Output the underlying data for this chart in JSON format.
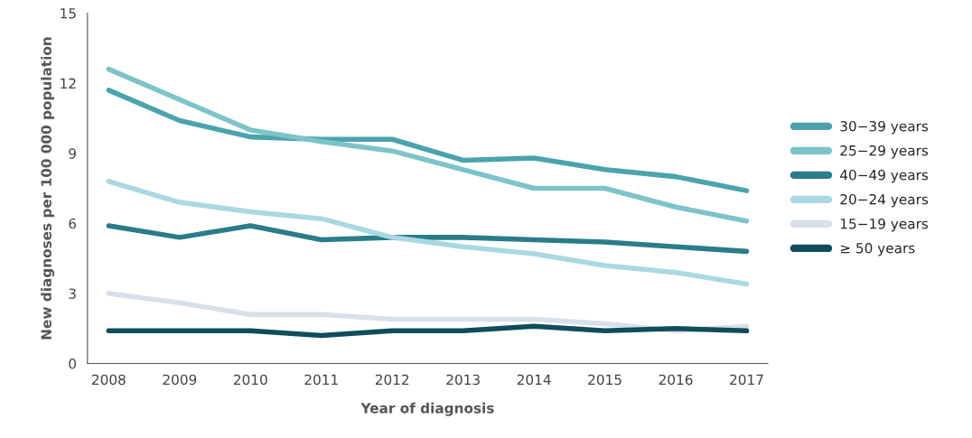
{
  "chart_data": {
    "type": "line",
    "xlabel": "Year of diagnosis",
    "ylabel": "New diagnoses per 100 000 population",
    "categories": [
      "2008",
      "2009",
      "2010",
      "2011",
      "2012",
      "2013",
      "2014",
      "2015",
      "2016",
      "2017"
    ],
    "ylim": [
      0,
      15
    ],
    "yticks": [
      0,
      3,
      6,
      9,
      12,
      15
    ],
    "grid": false,
    "legend": "right",
    "marker": "none",
    "line_style": "solid",
    "series": [
      {
        "name": "30−39 years",
        "color": "#4aa3ad",
        "values": [
          11.7,
          10.4,
          9.7,
          9.6,
          9.6,
          8.7,
          8.8,
          8.3,
          8.0,
          7.4
        ]
      },
      {
        "name": "25−29 years",
        "color": "#7cc4c9",
        "values": [
          12.6,
          11.3,
          10.0,
          9.5,
          9.1,
          8.3,
          7.5,
          7.5,
          6.7,
          6.1
        ]
      },
      {
        "name": "40−49 years",
        "color": "#2a7c8a",
        "values": [
          5.9,
          5.4,
          5.9,
          5.3,
          5.4,
          5.4,
          5.3,
          5.2,
          5.0,
          4.8
        ]
      },
      {
        "name": "20−24 years",
        "color": "#a9d8e2",
        "values": [
          7.8,
          6.9,
          6.5,
          6.2,
          5.4,
          5.0,
          4.7,
          4.2,
          3.9,
          3.4
        ]
      },
      {
        "name": "15−19 years",
        "color": "#d8e0ea",
        "values": [
          3.0,
          2.6,
          2.1,
          2.1,
          1.9,
          1.9,
          1.9,
          1.7,
          1.4,
          1.6
        ]
      },
      {
        "name": "≥ 50 years",
        "color": "#0f4c5c",
        "values": [
          1.4,
          1.4,
          1.4,
          1.2,
          1.4,
          1.4,
          1.6,
          1.4,
          1.5,
          1.4
        ]
      }
    ]
  }
}
